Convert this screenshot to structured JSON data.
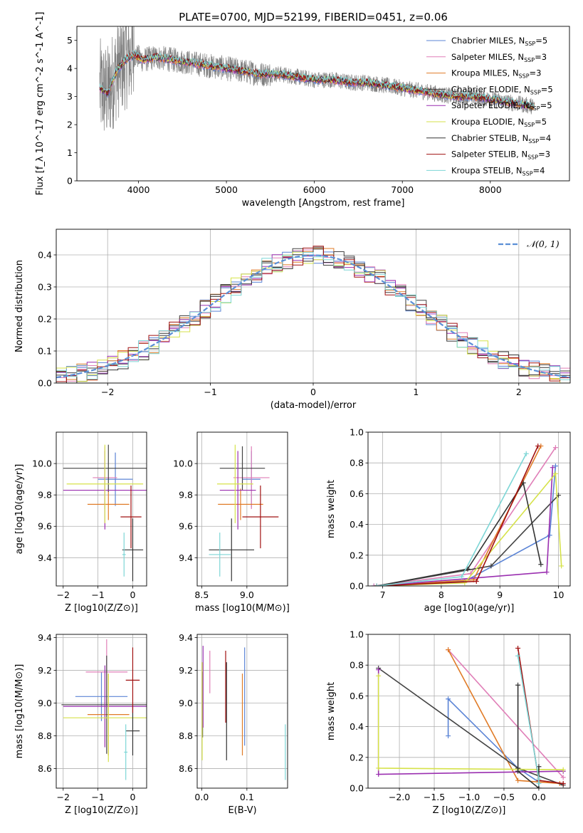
{
  "title": "PLATE=0700, MJD=52199, FIBERID=0451, z=0.06",
  "colors": {
    "Chabrier MILES": "#5b84d6",
    "Salpeter MILES": "#e07fb8",
    "Kroupa MILES": "#e07b27",
    "Chabrier ELODIE": "#444444",
    "Salpeter ELODIE": "#9a2fb0",
    "Kroupa ELODIE": "#d6e24a",
    "Chabrier STELIB": "#333333",
    "Salpeter STELIB": "#a01010",
    "Kroupa STELIB": "#7dd6d6",
    "data": "#808080",
    "normal": "#5b8fd6"
  },
  "legend_models": [
    {
      "name": "Chabrier MILES",
      "nssp": "5"
    },
    {
      "name": "Salpeter MILES",
      "nssp": "3"
    },
    {
      "name": "Kroupa MILES",
      "nssp": "3"
    },
    {
      "name": "Chabrier ELODIE",
      "nssp": "5"
    },
    {
      "name": "Salpeter ELODIE",
      "nssp": "5"
    },
    {
      "name": "Kroupa ELODIE",
      "nssp": "5"
    },
    {
      "name": "Chabrier STELIB",
      "nssp": "4"
    },
    {
      "name": "Salpeter STELIB",
      "nssp": "3"
    },
    {
      "name": "Kroupa STELIB",
      "nssp": "4"
    }
  ],
  "chart_data": [
    {
      "id": "spectrum",
      "type": "line",
      "xlabel": "wavelength [Angstrom, rest frame]",
      "ylabel": "Flux [f_λ 10^-17 erg cm^-2 s^-1 A^-1]",
      "xlim": [
        3300,
        8900
      ],
      "ylim": [
        0,
        5.5
      ],
      "xticks": [
        4000,
        5000,
        6000,
        7000,
        8000
      ],
      "yticks": [
        0,
        1,
        2,
        3,
        4,
        5
      ],
      "continuum": {
        "x": [
          3560,
          3650,
          3750,
          3850,
          3950,
          4050,
          4200,
          4400,
          4600,
          4800,
          5000,
          5200,
          5400,
          5600,
          5800,
          6000,
          6200,
          6400,
          6600,
          6800,
          7000,
          7200,
          7400,
          7600,
          7800,
          8000,
          8200,
          8400,
          8500
        ],
        "y": [
          3.3,
          3.1,
          3.9,
          4.3,
          4.5,
          4.3,
          4.4,
          4.3,
          4.2,
          4.1,
          4.0,
          3.9,
          3.8,
          3.8,
          3.7,
          3.6,
          3.6,
          3.5,
          3.5,
          3.4,
          3.3,
          3.2,
          3.1,
          3.0,
          3.0,
          2.9,
          2.8,
          2.7,
          2.65
        ]
      },
      "data_range": [
        3560,
        8500
      ]
    },
    {
      "id": "residuals",
      "type": "step",
      "xlabel": "(data-model)/error",
      "ylabel": "Normed distribution",
      "xlim": [
        -2.5,
        2.5
      ],
      "ylim": [
        0,
        0.48
      ],
      "xticks": [
        -2,
        -1,
        0,
        1,
        2
      ],
      "yticks": [
        0.0,
        0.1,
        0.2,
        0.3,
        0.4
      ],
      "legend": "𝒩(0, 1)",
      "bin_width": 0.1
    },
    {
      "id": "age-vs-Z",
      "type": "errorbar",
      "xlabel": "Z [log10(Z/Z⊙)]",
      "ylabel": "age [log10(age/yr)]",
      "xlim": [
        -2.2,
        0.4
      ],
      "ylim": [
        9.22,
        10.2
      ],
      "xticks": [
        -2,
        -1,
        0
      ],
      "yticks": [
        9.4,
        9.6,
        9.8,
        10.0
      ],
      "points": [
        {
          "model": "Chabrier MILES",
          "x": -0.5,
          "xerr": 0.5,
          "y": 9.9,
          "yerr": 0.17
        },
        {
          "model": "Salpeter MILES",
          "x": -0.8,
          "xerr": 0.35,
          "y": 9.91,
          "yerr": 0.2
        },
        {
          "model": "Kroupa MILES",
          "x": -0.7,
          "xerr": 0.6,
          "y": 9.74,
          "yerr": 0.1
        },
        {
          "model": "Chabrier ELODIE",
          "x": -0.7,
          "xerr": 1.3,
          "y": 9.97,
          "yerr": 0.15
        },
        {
          "model": "Salpeter ELODIE",
          "x": -0.8,
          "xerr": 1.2,
          "y": 9.83,
          "yerr": 0.25
        },
        {
          "model": "Kroupa ELODIE",
          "x": -0.8,
          "xerr": 1.1,
          "y": 9.87,
          "yerr": 0.25
        },
        {
          "model": "Chabrier STELIB",
          "x": 0.0,
          "xerr": 0.3,
          "y": 9.45,
          "yerr": 0.2
        },
        {
          "model": "Salpeter STELIB",
          "x": -0.05,
          "xerr": 0.3,
          "y": 9.66,
          "yerr": 0.2
        },
        {
          "model": "Kroupa STELIB",
          "x": -0.25,
          "xerr": 0.05,
          "y": 9.42,
          "yerr": 0.14
        }
      ]
    },
    {
      "id": "age-vs-mass",
      "type": "errorbar",
      "xlabel": "mass [log10(M/M⊙)]",
      "ylabel": "",
      "xlim": [
        8.45,
        9.45
      ],
      "ylim": [
        9.22,
        10.2
      ],
      "xticks": [
        8.5,
        9.0
      ],
      "yticks": [
        9.4,
        9.6,
        9.8,
        10.0
      ],
      "points": [
        {
          "model": "Chabrier MILES",
          "x": 9.05,
          "xerr": 0.1,
          "y": 9.9,
          "yerr": 0.18
        },
        {
          "model": "Salpeter MILES",
          "x": 9.05,
          "xerr": 0.2,
          "y": 9.91,
          "yerr": 0.2
        },
        {
          "model": "Kroupa MILES",
          "x": 8.93,
          "xerr": 0.25,
          "y": 9.74,
          "yerr": 0.1
        },
        {
          "model": "Chabrier ELODIE",
          "x": 8.95,
          "xerr": 0.25,
          "y": 9.97,
          "yerr": 0.14
        },
        {
          "model": "Salpeter ELODIE",
          "x": 8.9,
          "xerr": 0.2,
          "y": 9.83,
          "yerr": 0.25
        },
        {
          "model": "Kroupa ELODIE",
          "x": 8.87,
          "xerr": 0.2,
          "y": 9.87,
          "yerr": 0.25
        },
        {
          "model": "Chabrier STELIB",
          "x": 8.83,
          "xerr": 0.25,
          "y": 9.45,
          "yerr": 0.2
        },
        {
          "model": "Salpeter STELIB",
          "x": 9.15,
          "xerr": 0.2,
          "y": 9.66,
          "yerr": 0.2
        },
        {
          "model": "Kroupa STELIB",
          "x": 8.7,
          "xerr": 0.12,
          "y": 9.42,
          "yerr": 0.14
        }
      ]
    },
    {
      "id": "weight-vs-age",
      "type": "line",
      "xlabel": "age [log10(age/yr)]",
      "ylabel": "mass weight",
      "xlim": [
        6.75,
        10.2
      ],
      "ylim": [
        0,
        1.0
      ],
      "xticks": [
        7,
        8,
        9,
        10
      ],
      "yticks": [
        0.0,
        0.2,
        0.4,
        0.6,
        0.8,
        1.0
      ],
      "series": [
        {
          "model": "Chabrier MILES",
          "x": [
            6.85,
            8.4,
            9.85,
            9.95
          ],
          "y": [
            0.0,
            0.03,
            0.33,
            0.78
          ]
        },
        {
          "model": "Salpeter MILES",
          "x": [
            6.85,
            8.5,
            9.95
          ],
          "y": [
            0.0,
            0.08,
            0.9
          ]
        },
        {
          "model": "Kroupa MILES",
          "x": [
            6.9,
            8.55,
            9.7
          ],
          "y": [
            0.0,
            0.04,
            0.91
          ]
        },
        {
          "model": "Chabrier ELODIE",
          "x": [
            6.9,
            8.85,
            10.0
          ],
          "y": [
            0.0,
            0.13,
            0.59
          ]
        },
        {
          "model": "Salpeter ELODIE",
          "x": [
            6.9,
            9.8,
            9.9
          ],
          "y": [
            0.0,
            0.09,
            0.77
          ]
        },
        {
          "model": "Kroupa ELODIE",
          "x": [
            6.9,
            8.4,
            9.95,
            10.05
          ],
          "y": [
            0.0,
            0.02,
            0.73,
            0.13
          ]
        },
        {
          "model": "Chabrier STELIB",
          "x": [
            6.9,
            8.45,
            9.4,
            9.7
          ],
          "y": [
            0.0,
            0.11,
            0.67,
            0.14
          ]
        },
        {
          "model": "Salpeter STELIB",
          "x": [
            6.9,
            8.6,
            9.65
          ],
          "y": [
            0.0,
            0.03,
            0.91
          ]
        },
        {
          "model": "Kroupa STELIB",
          "x": [
            6.9,
            8.35,
            9.45
          ],
          "y": [
            0.0,
            0.06,
            0.86
          ]
        }
      ]
    },
    {
      "id": "mass-vs-Z",
      "type": "errorbar",
      "xlabel": "Z [log10(Z/Z⊙)]",
      "ylabel": "mass [log10(M/M⊙)]",
      "xlim": [
        -2.2,
        0.4
      ],
      "ylim": [
        8.48,
        9.42
      ],
      "xticks": [
        -2,
        -1,
        0
      ],
      "yticks": [
        8.6,
        8.8,
        9.0,
        9.2,
        9.4
      ],
      "points": [
        {
          "model": "Chabrier MILES",
          "x": -0.9,
          "xerr": 0.75,
          "y": 9.04,
          "yerr": 0.15
        },
        {
          "model": "Salpeter MILES",
          "x": -0.75,
          "xerr": 0.6,
          "y": 9.19,
          "yerr": 0.2
        },
        {
          "model": "Kroupa MILES",
          "x": -0.7,
          "xerr": 0.6,
          "y": 8.93,
          "yerr": 0.25
        },
        {
          "model": "Chabrier ELODIE",
          "x": -0.75,
          "xerr": 1.3,
          "y": 8.99,
          "yerr": 0.3
        },
        {
          "model": "Salpeter ELODIE",
          "x": -0.8,
          "xerr": 1.2,
          "y": 8.98,
          "yerr": 0.25
        },
        {
          "model": "Kroupa ELODIE",
          "x": -0.7,
          "xerr": 1.3,
          "y": 8.91,
          "yerr": 0.27
        },
        {
          "model": "Chabrier STELIB",
          "x": 0.0,
          "xerr": 0.2,
          "y": 8.83,
          "yerr": 0.15
        },
        {
          "model": "Salpeter STELIB",
          "x": 0.0,
          "xerr": 0.2,
          "y": 9.14,
          "yerr": 0.2
        },
        {
          "model": "Kroupa STELIB",
          "x": -0.2,
          "xerr": 0.05,
          "y": 8.7,
          "yerr": 0.17
        }
      ]
    },
    {
      "id": "mass-vs-ebv",
      "type": "errorbar",
      "xlabel": "E(B-V)",
      "ylabel": "",
      "xlim": [
        -0.01,
        0.19
      ],
      "ylim": [
        8.48,
        9.42
      ],
      "xticks": [
        0.0,
        0.1
      ],
      "yticks": [
        8.6,
        8.8,
        9.0,
        9.2,
        9.4
      ],
      "points": [
        {
          "model": "Chabrier MILES",
          "x": 0.095,
          "xerr": 0,
          "y": 9.04,
          "yerr": 0.3
        },
        {
          "model": "Salpeter MILES",
          "x": 0.018,
          "xerr": 0,
          "y": 9.19,
          "yerr": 0.13
        },
        {
          "model": "Kroupa MILES",
          "x": 0.09,
          "xerr": 0,
          "y": 8.93,
          "yerr": 0.25
        },
        {
          "model": "Chabrier ELODIE",
          "x": 0.002,
          "xerr": 0,
          "y": 8.99,
          "yerr": 0.2
        },
        {
          "model": "Salpeter ELODIE",
          "x": 0.003,
          "xerr": 0,
          "y": 9.1,
          "yerr": 0.25
        },
        {
          "model": "Kroupa ELODIE",
          "x": 0.001,
          "xerr": 0,
          "y": 8.95,
          "yerr": 0.3
        },
        {
          "model": "Chabrier STELIB",
          "x": 0.055,
          "xerr": 0,
          "y": 8.95,
          "yerr": 0.3
        },
        {
          "model": "Salpeter STELIB",
          "x": 0.053,
          "xerr": 0,
          "y": 9.1,
          "yerr": 0.22
        },
        {
          "model": "Kroupa STELIB",
          "x": 0.185,
          "xerr": 0,
          "y": 8.7,
          "yerr": 0.17
        }
      ]
    },
    {
      "id": "weight-vs-Z",
      "type": "line",
      "xlabel": "Z [log10(Z/Z⊙)]",
      "ylabel": "mass weight",
      "xlim": [
        -2.45,
        0.45
      ],
      "ylim": [
        0,
        1.0
      ],
      "xticks": [
        -2.0,
        -1.5,
        -1.0,
        -0.5,
        0.0
      ],
      "yticks": [
        0.0,
        0.2,
        0.4,
        0.6,
        0.8,
        1.0
      ],
      "series": [
        {
          "model": "Chabrier MILES",
          "x": [
            -1.3,
            -1.3,
            -0.3,
            0.0
          ],
          "y": [
            0.34,
            0.58,
            0.13,
            0.04
          ]
        },
        {
          "model": "Salpeter MILES",
          "x": [
            -1.3,
            0.35
          ],
          "y": [
            0.9,
            0.07
          ]
        },
        {
          "model": "Kroupa MILES",
          "x": [
            -1.3,
            -0.3,
            0.3
          ],
          "y": [
            0.9,
            0.05,
            0.03
          ]
        },
        {
          "model": "Chabrier ELODIE",
          "x": [
            -2.3,
            -0.3,
            0.35
          ],
          "y": [
            0.78,
            0.13,
            0.02
          ]
        },
        {
          "model": "Salpeter ELODIE",
          "x": [
            -2.3,
            -2.3,
            0.35
          ],
          "y": [
            0.77,
            0.09,
            0.11
          ]
        },
        {
          "model": "Kroupa ELODIE",
          "x": [
            -2.3,
            -2.3,
            0.35
          ],
          "y": [
            0.73,
            0.13,
            0.12
          ]
        },
        {
          "model": "Chabrier STELIB",
          "x": [
            -0.3,
            -0.3,
            0.0,
            0.0
          ],
          "y": [
            0.67,
            0.11,
            0.0,
            0.14
          ]
        },
        {
          "model": "Salpeter STELIB",
          "x": [
            -0.3,
            0.0,
            0.35
          ],
          "y": [
            0.91,
            0.05,
            0.03
          ]
        },
        {
          "model": "Kroupa STELIB",
          "x": [
            -0.3,
            0.0,
            0.0
          ],
          "y": [
            0.86,
            0.06,
            0.03
          ]
        }
      ]
    }
  ]
}
